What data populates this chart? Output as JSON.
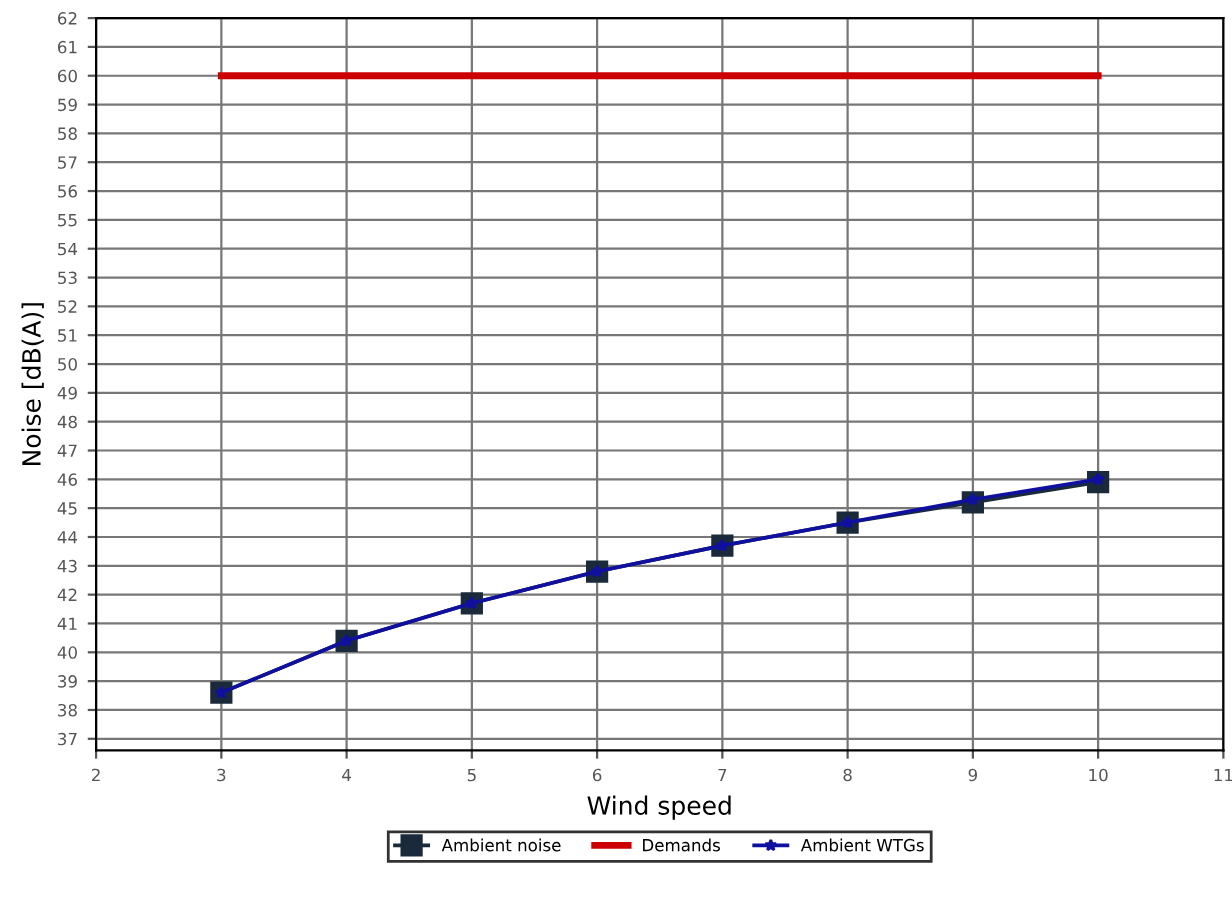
{
  "chart_data": {
    "type": "line",
    "xlabel": "Wind speed",
    "ylabel": "Noise [dB(A)]",
    "xlim": [
      2,
      11
    ],
    "xticks": [
      2,
      3,
      4,
      5,
      6,
      7,
      8,
      9,
      10,
      11
    ],
    "ylim": [
      36.6,
      62
    ],
    "yticks": [
      37,
      38,
      39,
      40,
      41,
      42,
      43,
      44,
      45,
      46,
      47,
      48,
      49,
      50,
      51,
      52,
      53,
      54,
      55,
      56,
      57,
      58,
      59,
      60,
      61,
      62
    ],
    "grid": true,
    "legend": "bottom",
    "series": [
      {
        "name": "Ambient noise",
        "color": "#1a2a3a",
        "marker": "square",
        "x": [
          3,
          4,
          5,
          6,
          7,
          8,
          9,
          10
        ],
        "values": [
          38.6,
          40.4,
          41.7,
          42.8,
          43.7,
          44.5,
          45.2,
          45.9
        ]
      },
      {
        "name": "Demands",
        "color": "#cc0000",
        "marker": "none",
        "x": [
          3,
          10
        ],
        "values": [
          60,
          60
        ]
      },
      {
        "name": "Ambient WTGs",
        "color": "#1010a0",
        "marker": "star",
        "x": [
          3,
          4,
          5,
          6,
          7,
          8,
          9,
          10
        ],
        "values": [
          38.6,
          40.4,
          41.7,
          42.8,
          43.7,
          44.5,
          45.3,
          46.0
        ]
      }
    ]
  }
}
